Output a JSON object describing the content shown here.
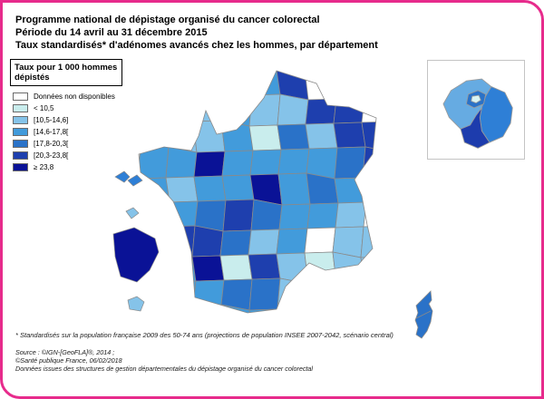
{
  "title": {
    "line1": "Programme national de dépistage organisé du cancer colorectal",
    "line2": "Période du 14 avril au 31 décembre 2015",
    "line3": "Taux standardisés* d'adénomes avancés chez les hommes, par département"
  },
  "legend": {
    "title_line1": "Taux pour 1 000 hommes",
    "title_line2": "dépistés",
    "items": [
      {
        "label": "Données non disponibles",
        "color": "#ffffff"
      },
      {
        "label": "< 10,5",
        "color": "#c9eded"
      },
      {
        "label": "[10,5-14,6]",
        "color": "#85c3e9"
      },
      {
        "label": "[14,6-17,8[",
        "color": "#429bdb"
      },
      {
        "label": "[17,8-20,3[",
        "color": "#2a72c8"
      },
      {
        "label": "[20,3-23,8[",
        "color": "#1e3fae"
      },
      {
        "label": "≥ 23,8",
        "color": "#0a1296"
      }
    ]
  },
  "footnotes": {
    "standardisation": "* Standardisés sur la population française 2009 des 50-74 ans (projections de population INSEE 2007-2042, scénario central)",
    "source_line1": "Source : ©IGN-[GeoFLA]®, 2014 ;",
    "source_line2": "©Santé publique France, 06/02/2018",
    "source_line3": "Données issues des structures de gestion départementales du dépistage organisé du cancer colorectal"
  },
  "colors": {
    "frame_border": "#e72b8c",
    "department_stroke": "#8a8a8a",
    "corsica_fill": "#2a72c8",
    "guadeloupe_fill": "#2e7fd6",
    "martinique_fill": "#85c3e9",
    "guyane_fill": "#0a1296",
    "reunion_fill": "#85c3e9",
    "idf_west_fill": "#66abe2",
    "idf_east_fill": "#2e7fd6",
    "idf_south_fill": "#1d3cad",
    "idf_ring_fill": "#2a72c8",
    "idf_paris_fill": "#d9f4f4"
  },
  "chart_data": {
    "type": "choropleth_map",
    "title": "Taux standardisés d'adénomes avancés chez les hommes, par département",
    "unit": "Taux pour 1 000 hommes dépistés",
    "classes": [
      "Données non disponibles",
      "< 10,5",
      "[10,5-14,6]",
      "[14,6-17,8[",
      "[17,8-20,3[",
      "[20,3-23,8[",
      "≥ 23,8"
    ],
    "class_tokens": {
      "W": "#ffffff",
      "C": "#c9eded",
      "L": "#85c3e9",
      "M": "#429bdb",
      "B": "#2a72c8",
      "D": "#1e3fae",
      "N": "#0a1296"
    },
    "grid": [
      "....MD....",
      "..LMLLDD..",
      "DLLMCBLDD.",
      "MMNMMMMBD.",
      "MLMMNMBMM.",
      ".MBDBMML..",
      ".DDBLMWLL.",
      ".MNCDLCLL.",
      ".MMBBL....",
      "...MM....."
    ],
    "notable_regions": {
      "nord": "≥ 20,3",
      "alsace_lorraine": "[20,3-23,8[",
      "mayenne": "≥ 23,8",
      "loiret": "≥ 23,8",
      "gers": "≥ 23,8",
      "guyane": "≥ 23,8",
      "eure_et_loir": "< 10,5",
      "haute_garonne": "< 10,5",
      "drome_ardeche": "Données non disponibles",
      "corse": "[17,8-20,3["
    }
  }
}
